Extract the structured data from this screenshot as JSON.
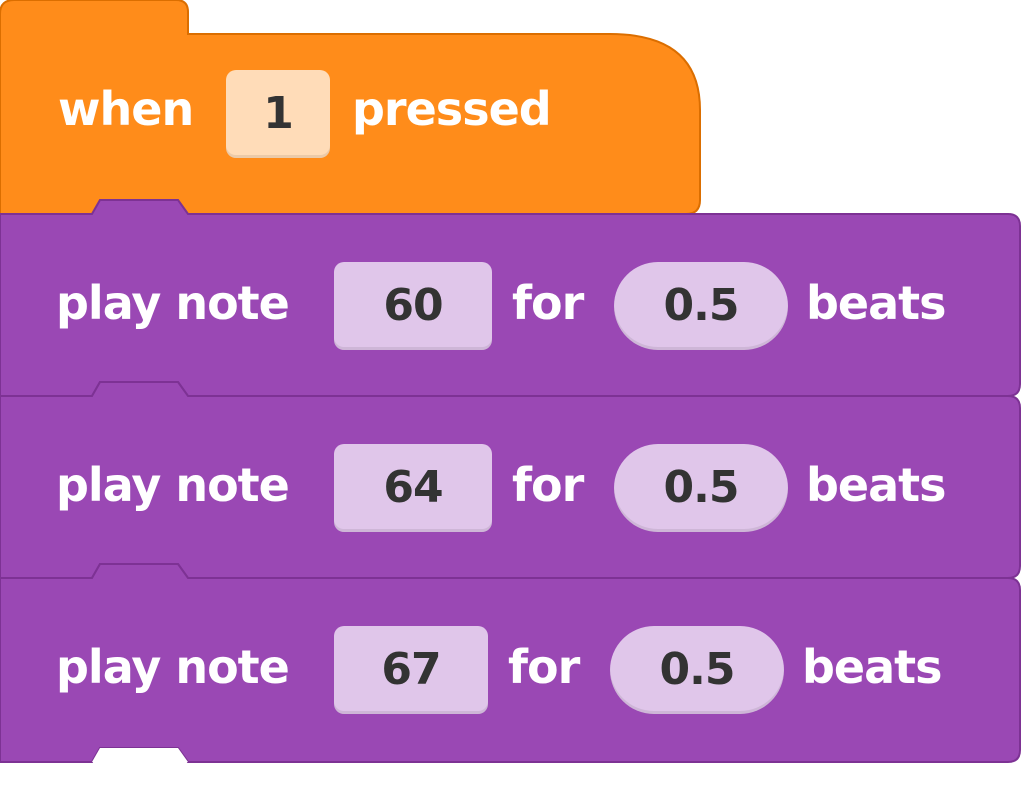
{
  "colors": {
    "event_block": "#ff8c1a",
    "event_block_edge": "#db6e00",
    "sound_block": "#9a48b4",
    "sound_block_edge": "#7d3294",
    "key_slot": "#ffdcb8",
    "number_slot": "#e0c6ea",
    "text": "#ffffff",
    "slot_text": "#333333"
  },
  "hat_block": {
    "label_before": "when",
    "key_value": "1",
    "label_after": "pressed"
  },
  "play_blocks": [
    {
      "label_play": "play note",
      "note": "60",
      "label_for": "for",
      "beats": "0.5",
      "label_beats": "beats"
    },
    {
      "label_play": "play note",
      "note": "64",
      "label_for": "for",
      "beats": "0.5",
      "label_beats": "beats"
    },
    {
      "label_play": "play note",
      "note": "67",
      "label_for": "for",
      "beats": "0.5",
      "label_beats": "beats"
    }
  ]
}
